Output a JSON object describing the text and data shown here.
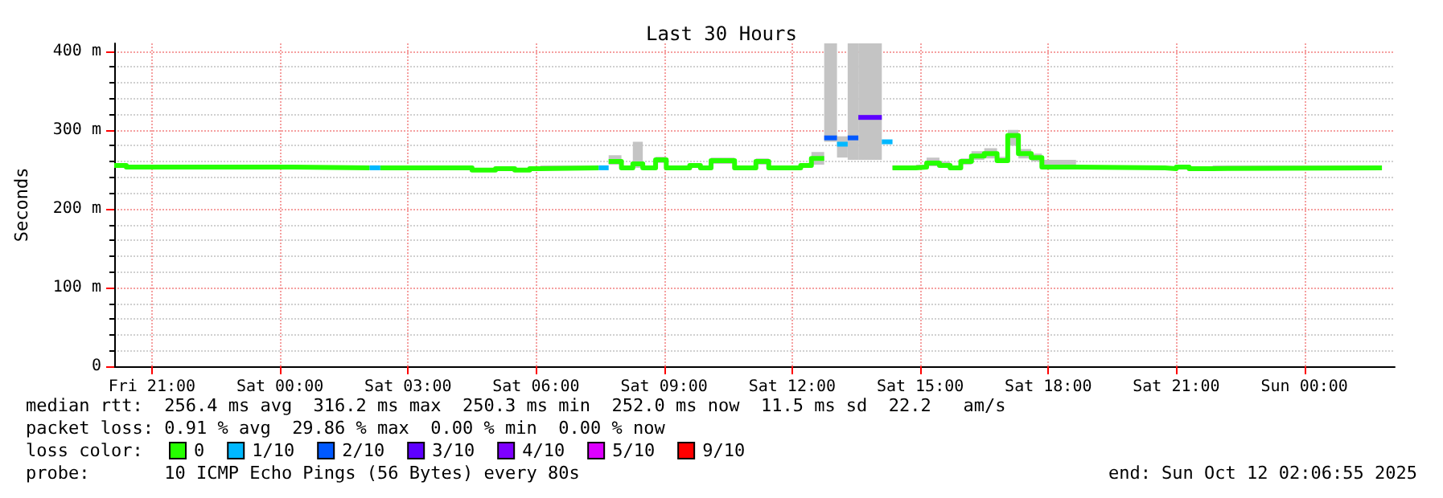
{
  "chart_data": {
    "type": "step",
    "title": "Last 30 Hours",
    "ylabel": "Seconds",
    "legend_title": "loss color:",
    "xlim": [
      "2025-10-10T20:07",
      "2025-10-12T02:07"
    ],
    "xticks": [
      {
        "value": "2025-10-10T21:00",
        "label": "Fri 21:00"
      },
      {
        "value": "2025-10-11T00:00",
        "label": "Sat 00:00"
      },
      {
        "value": "2025-10-11T03:00",
        "label": "Sat 03:00"
      },
      {
        "value": "2025-10-11T06:00",
        "label": "Sat 06:00"
      },
      {
        "value": "2025-10-11T09:00",
        "label": "Sat 09:00"
      },
      {
        "value": "2025-10-11T12:00",
        "label": "Sat 12:00"
      },
      {
        "value": "2025-10-11T15:00",
        "label": "Sat 15:00"
      },
      {
        "value": "2025-10-11T18:00",
        "label": "Sat 18:00"
      },
      {
        "value": "2025-10-11T21:00",
        "label": "Sat 21:00"
      },
      {
        "value": "2025-10-12T00:00",
        "label": "Sun 00:00"
      }
    ],
    "ylim": [
      0,
      410
    ],
    "yticks": [
      0,
      {
        "value": 100,
        "label": "100 m"
      },
      {
        "value": 200,
        "label": "200 m"
      },
      {
        "value": 300,
        "label": "300 m"
      },
      {
        "value": 400,
        "label": "400 m"
      }
    ],
    "grid": true,
    "legend": "bottom left",
    "series": [
      {
        "name": "0",
        "color": "#26ff00",
        "x": [
          "2025-10-10T20:07",
          "2025-10-10T20:24",
          "2025-10-11T00:18",
          "2025-10-11T02:06"
        ],
        "values": [
          255,
          253,
          252,
          252
        ],
        "lower": [
          253,
          251,
          250,
          250
        ],
        "upper": [
          258,
          256,
          255,
          255
        ]
      },
      {
        "color": "#26ff00",
        "x": [
          "2025-10-11T02:21",
          "2025-10-11T04:30",
          "2025-10-11T05:03",
          "2025-10-11T05:30",
          "2025-10-11T05:51",
          "2025-10-11T06:06",
          "2025-10-11T07:28"
        ],
        "values": [
          252,
          249,
          251,
          249,
          251,
          252,
          252
        ],
        "lower": [
          250,
          247,
          249,
          247,
          249,
          250,
          250
        ],
        "upper": [
          255,
          252,
          254,
          252,
          254,
          255,
          255
        ]
      },
      {
        "color": "#26ff00",
        "x": [
          "2025-10-11T07:42",
          "2025-10-11T08:00",
          "2025-10-11T08:16",
          "2025-10-11T08:30",
          "2025-10-11T08:48",
          "2025-10-11T09:03",
          "2025-10-11T09:36",
          "2025-10-11T09:51",
          "2025-10-11T10:06",
          "2025-10-11T10:39",
          "2025-10-11T11:09",
          "2025-10-11T11:27",
          "2025-10-11T12:12",
          "2025-10-11T12:27",
          "2025-10-11T12:45"
        ],
        "values": [
          260,
          252,
          257,
          252,
          262,
          252,
          255,
          252,
          261,
          252,
          260,
          252,
          255,
          264,
          264
        ],
        "lower": [
          256,
          250,
          252,
          250,
          258,
          250,
          252,
          250,
          257,
          250,
          256,
          250,
          252,
          256,
          256
        ],
        "upper": [
          268,
          255,
          285,
          255,
          266,
          255,
          258,
          255,
          265,
          255,
          264,
          255,
          258,
          272,
          272
        ]
      },
      {
        "color": "#26ff00",
        "x": [
          "2025-10-11T14:21",
          "2025-10-11T14:54",
          "2025-10-11T15:09",
          "2025-10-11T15:27",
          "2025-10-11T15:42",
          "2025-10-11T15:57",
          "2025-10-11T16:12",
          "2025-10-11T16:30",
          "2025-10-11T16:48",
          "2025-10-11T17:03",
          "2025-10-11T17:18",
          "2025-10-11T17:36",
          "2025-10-11T17:51",
          "2025-10-11T18:39",
          "2025-10-11T20:44",
          "2025-10-11T21:00",
          "2025-10-11T21:18",
          "2025-10-11T21:51",
          "2025-10-12T01:49"
        ],
        "values": [
          252,
          253,
          258,
          255,
          252,
          260,
          267,
          270,
          261,
          293,
          270,
          265,
          253,
          252,
          251,
          253,
          251,
          252,
          252
        ],
        "lower": [
          250,
          251,
          254,
          252,
          250,
          256,
          262,
          264,
          258,
          280,
          264,
          260,
          250,
          250,
          249,
          251,
          249,
          250,
          250
        ],
        "upper": [
          255,
          256,
          265,
          260,
          255,
          264,
          273,
          277,
          266,
          300,
          276,
          270,
          262,
          255,
          254,
          256,
          254,
          255,
          255
        ]
      },
      {
        "name": "1/10",
        "color": "#00b8ff",
        "x": [
          "2025-10-11T02:06",
          "2025-10-11T02:21"
        ],
        "values": [
          252,
          252
        ]
      },
      {
        "color": "#00b8ff",
        "x": [
          "2025-10-11T07:28",
          "2025-10-11T07:42"
        ],
        "values": [
          252,
          252
        ]
      },
      {
        "color": "#00b8ff",
        "x": [
          "2025-10-11T13:03",
          "2025-10-11T13:18"
        ],
        "values": [
          282,
          282
        ],
        "lower": [
          265,
          265
        ],
        "upper": [
          292,
          292
        ]
      },
      {
        "color": "#00b8ff",
        "x": [
          "2025-10-11T14:06",
          "2025-10-11T14:21"
        ],
        "values": [
          285,
          285
        ]
      },
      {
        "name": "2/10",
        "color": "#0059ff",
        "x": [
          "2025-10-11T12:45",
          "2025-10-11T13:03"
        ],
        "values": [
          290,
          290
        ],
        "lower": [
          285,
          285
        ],
        "upper": [
          410,
          410
        ]
      },
      {
        "color": "#0059ff",
        "x": [
          "2025-10-11T13:18",
          "2025-10-11T13:33"
        ],
        "values": [
          290,
          290
        ],
        "lower": [
          262,
          262
        ],
        "upper": [
          410,
          410
        ]
      },
      {
        "name": "3/10",
        "color": "#5e00ff",
        "x": [
          "2025-10-11T13:33",
          "2025-10-11T14:06"
        ],
        "values": [
          316,
          316
        ],
        "lower": [
          262,
          262
        ],
        "upper": [
          410,
          410
        ]
      },
      {
        "name": "4/10",
        "color": "#7e00ff"
      },
      {
        "name": "5/10",
        "color": "#dd00ff"
      },
      {
        "name": "9/10",
        "color": "#ff0000"
      }
    ],
    "annotations": [
      "median rtt:  256.4 ms avg  316.2 ms max  250.3 ms min  252.0 ms now  11.5 ms sd  22.2   am/s",
      "packet loss: 0.91 % avg  29.86 % max  0.00 % min  0.00 % now",
      "probe:       10 ICMP Echo Pings (56 Bytes) every 80s",
      "end: Sun Oct 12 02:06:55 2025"
    ]
  }
}
